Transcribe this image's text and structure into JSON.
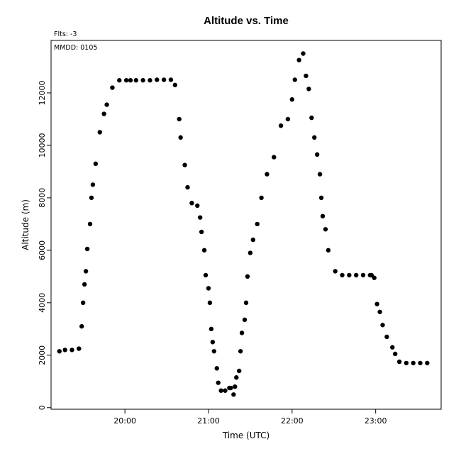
{
  "chart_data": {
    "type": "scatter",
    "title": "Altitude  vs. Time",
    "xlabel": "Time (UTC)",
    "ylabel": "Altitude (m)",
    "annotations": {
      "flts": "Flts: -3",
      "mmdd": "MMDD: 0105"
    },
    "x_ticks": [
      "20:00",
      "21:00",
      "22:00",
      "23:00"
    ],
    "y_ticks": [
      "0",
      "2000",
      "4000",
      "6000",
      "8000",
      "10000",
      "12000"
    ],
    "xlim": [
      "19:07",
      "23:47"
    ],
    "ylim": [
      -60,
      14000
    ],
    "grid": false,
    "legend": "none",
    "marker_color": "#000000",
    "series": [
      {
        "x": [
          "19:13",
          "19:17",
          "19:22",
          "19:27",
          "19:29",
          "19:30",
          "19:31",
          "19:32",
          "19:33",
          "19:35",
          "19:36",
          "19:37",
          "19:39",
          "19:42",
          "19:45",
          "19:47",
          "19:51",
          "19:56",
          "20:01",
          "20:04",
          "20:08",
          "20:13",
          "20:18",
          "20:23",
          "20:28",
          "20:33",
          "20:36",
          "20:39",
          "20:40",
          "20:43",
          "20:45",
          "20:48",
          "20:52",
          "20:54",
          "20:55",
          "20:57",
          "20:58",
          "21:00",
          "21:01",
          "21:02",
          "21:03",
          "21:04",
          "21:06",
          "21:07",
          "21:09",
          "21:12",
          "21:15",
          "21:16",
          "21:18",
          "21:19",
          "21:20",
          "21:22",
          "21:23",
          "21:24",
          "21:26",
          "21:27",
          "21:28",
          "21:30",
          "21:32",
          "21:35",
          "21:38",
          "21:42",
          "21:47",
          "21:52",
          "21:57",
          "22:00",
          "22:02",
          "22:05",
          "22:08",
          "22:10",
          "22:12",
          "22:14",
          "22:16",
          "22:18",
          "22:20",
          "22:21",
          "22:22",
          "22:24",
          "22:26",
          "22:31",
          "22:36",
          "22:41",
          "22:46",
          "22:51",
          "22:56",
          "22:57",
          "22:59",
          "23:01",
          "23:03",
          "23:05",
          "23:08",
          "23:12",
          "23:14",
          "23:17",
          "23:22",
          "23:27",
          "23:32",
          "23:37"
        ],
        "y": [
          2150,
          2200,
          2200,
          2250,
          3100,
          4000,
          4700,
          5200,
          6050,
          7000,
          8000,
          8500,
          9300,
          10500,
          11200,
          11550,
          12200,
          12480,
          12480,
          12480,
          12480,
          12480,
          12480,
          12500,
          12500,
          12500,
          12300,
          11000,
          10300,
          9250,
          8400,
          7800,
          7700,
          7250,
          6700,
          6000,
          5050,
          4550,
          4000,
          3000,
          2500,
          2150,
          1500,
          950,
          650,
          650,
          750,
          750,
          500,
          800,
          1150,
          1400,
          2150,
          2850,
          3350,
          4000,
          5000,
          5900,
          6400,
          7000,
          8000,
          8900,
          9550,
          10750,
          11000,
          11750,
          12500,
          13250,
          13500,
          12650,
          12150,
          11050,
          10300,
          9650,
          8900,
          8000,
          7300,
          6800,
          6000,
          5200,
          5050,
          5050,
          5050,
          5050,
          5050,
          5050,
          4950,
          3950,
          3650,
          3150,
          2700,
          2300,
          2050,
          1750,
          1700,
          1700,
          1700,
          1700
        ]
      }
    ]
  }
}
